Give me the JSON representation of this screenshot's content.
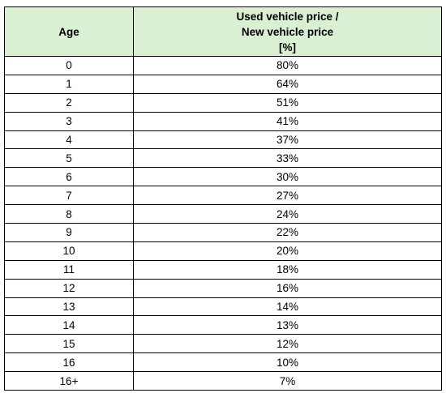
{
  "table": {
    "header": {
      "age": "Age",
      "price_line1": "Used vehicle price /",
      "price_line2": "New vehicle price",
      "price_line3": "[%]"
    },
    "rows": [
      {
        "age": "0",
        "pct": "80%"
      },
      {
        "age": "1",
        "pct": "64%"
      },
      {
        "age": "2",
        "pct": "51%"
      },
      {
        "age": "3",
        "pct": "41%"
      },
      {
        "age": "4",
        "pct": "37%"
      },
      {
        "age": "5",
        "pct": "33%"
      },
      {
        "age": "6",
        "pct": "30%"
      },
      {
        "age": "7",
        "pct": "27%"
      },
      {
        "age": "8",
        "pct": "24%"
      },
      {
        "age": "9",
        "pct": "22%"
      },
      {
        "age": "10",
        "pct": "20%"
      },
      {
        "age": "11",
        "pct": "18%"
      },
      {
        "age": "12",
        "pct": "16%"
      },
      {
        "age": "13",
        "pct": "14%"
      },
      {
        "age": "14",
        "pct": "13%"
      },
      {
        "age": "15",
        "pct": "12%"
      },
      {
        "age": "16",
        "pct": "10%"
      },
      {
        "age": "16+",
        "pct": "7%"
      }
    ],
    "header_color": "#d9f0d3"
  }
}
